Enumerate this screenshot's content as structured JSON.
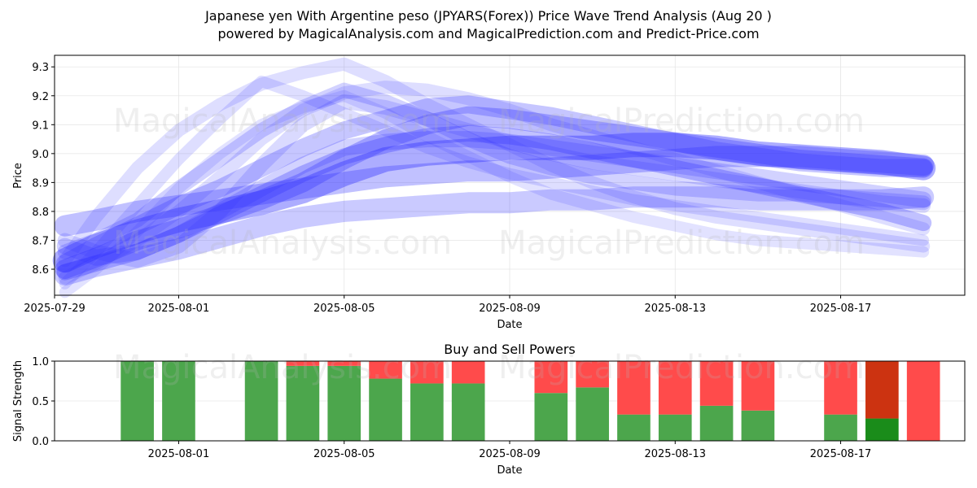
{
  "header": {
    "title_line1": "Japanese yen With Argentine peso (JPYARS(Forex)) Price Wave Trend Analysis (Aug 20 )",
    "title_line2": "powered by MagicalAnalysis.com and MagicalPrediction.com and Predict-Price.com"
  },
  "watermarks": [
    "MagicalAnalysis.com",
    "MagicalPrediction.com"
  ],
  "colors": {
    "wave": "#3333ff",
    "buy": "#4ca64c",
    "sell": "#ff4b4b",
    "buy_strong": "#1a8c1a",
    "sell_strong": "#cc3311"
  },
  "chart_data": [
    {
      "type": "line",
      "title": "",
      "xlabel": "Date",
      "ylabel": "Price",
      "xlim": [
        "2025-07-29",
        "2025-08-20"
      ],
      "ylim": [
        8.51,
        9.34
      ],
      "x_ticks": [
        "2025-07-29",
        "2025-08-01",
        "2025-08-05",
        "2025-08-09",
        "2025-08-13",
        "2025-08-17"
      ],
      "y_ticks": [
        8.6,
        8.7,
        8.8,
        8.9,
        9.0,
        9.1,
        9.2,
        9.3
      ],
      "grid": true,
      "series": [
        {
          "x": [
            "2025-07-29T06:00",
            "2025-07-30",
            "2025-07-31",
            "2025-08-01",
            "2025-08-02",
            "2025-08-03",
            "2025-08-04",
            "2025-08-05",
            "2025-08-06",
            "2025-08-07",
            "2025-08-08",
            "2025-08-09",
            "2025-08-10",
            "2025-08-11",
            "2025-08-12",
            "2025-08-13",
            "2025-08-14",
            "2025-08-15",
            "2025-08-16",
            "2025-08-17",
            "2025-08-18",
            "2025-08-19"
          ],
          "y": [
            8.63,
            8.68,
            8.73,
            8.77,
            8.8,
            8.83,
            8.87,
            8.93,
            8.98,
            9.0,
            9.01,
            9.02,
            9.02,
            9.02,
            9.03,
            9.03,
            9.02,
            9.0,
            8.99,
            8.98,
            8.97,
            8.95
          ]
        },
        {
          "x": [
            "2025-07-29T06:00",
            "2025-07-30",
            "2025-07-31",
            "2025-08-01",
            "2025-08-02",
            "2025-08-03",
            "2025-08-04",
            "2025-08-05",
            "2025-08-06",
            "2025-08-07",
            "2025-08-08",
            "2025-08-09",
            "2025-08-10",
            "2025-08-11",
            "2025-08-12",
            "2025-08-13",
            "2025-08-14",
            "2025-08-15",
            "2025-08-16",
            "2025-08-17",
            "2025-08-18",
            "2025-08-19"
          ],
          "y": [
            8.75,
            8.77,
            8.8,
            8.82,
            8.84,
            8.86,
            8.88,
            8.9,
            8.92,
            8.93,
            8.94,
            8.94,
            8.95,
            8.96,
            8.97,
            8.98,
            8.99,
            8.99,
            8.99,
            8.98,
            8.97,
            8.96
          ]
        },
        {
          "x": [
            "2025-07-29T06:00",
            "2025-07-30",
            "2025-07-31",
            "2025-08-01",
            "2025-08-02",
            "2025-08-03",
            "2025-08-04",
            "2025-08-05",
            "2025-08-06",
            "2025-08-07",
            "2025-08-08",
            "2025-08-09",
            "2025-08-10",
            "2025-08-11",
            "2025-08-12",
            "2025-08-13",
            "2025-08-14",
            "2025-08-15",
            "2025-08-16",
            "2025-08-17",
            "2025-08-18",
            "2025-08-19"
          ],
          "y": [
            8.6,
            8.64,
            8.7,
            8.74,
            8.79,
            8.84,
            8.9,
            8.98,
            9.05,
            9.1,
            9.13,
            9.12,
            9.1,
            9.08,
            9.06,
            9.04,
            9.02,
            9.0,
            8.98,
            8.97,
            8.96,
            8.95
          ]
        },
        {
          "x": [
            "2025-07-29T06:00",
            "2025-07-30",
            "2025-07-31",
            "2025-08-01",
            "2025-08-02",
            "2025-08-03",
            "2025-08-04",
            "2025-08-05",
            "2025-08-06",
            "2025-08-07",
            "2025-08-08",
            "2025-08-09",
            "2025-08-10",
            "2025-08-11",
            "2025-08-12",
            "2025-08-13",
            "2025-08-14",
            "2025-08-15",
            "2025-08-16",
            "2025-08-17",
            "2025-08-18",
            "2025-08-19"
          ],
          "y": [
            8.62,
            8.68,
            8.75,
            8.82,
            8.88,
            8.95,
            9.02,
            9.08,
            9.12,
            9.16,
            9.17,
            9.15,
            9.13,
            9.1,
            9.07,
            9.04,
            9.01,
            8.99,
            8.97,
            8.96,
            8.95,
            8.95
          ]
        },
        {
          "x": [
            "2025-07-29T06:00",
            "2025-07-30",
            "2025-07-31",
            "2025-08-01",
            "2025-08-02",
            "2025-08-03",
            "2025-08-04",
            "2025-08-05",
            "2025-08-06",
            "2025-08-07",
            "2025-08-08",
            "2025-08-09",
            "2025-08-10",
            "2025-08-11",
            "2025-08-12",
            "2025-08-13",
            "2025-08-14",
            "2025-08-15",
            "2025-08-16",
            "2025-08-17",
            "2025-08-18",
            "2025-08-19"
          ],
          "y": [
            8.66,
            8.7,
            8.77,
            8.88,
            8.98,
            9.08,
            9.16,
            9.22,
            9.18,
            9.12,
            9.05,
            8.99,
            8.95,
            8.92,
            8.9,
            8.88,
            8.87,
            8.86,
            8.86,
            8.85,
            8.84,
            8.83
          ]
        },
        {
          "x": [
            "2025-07-29T06:00",
            "2025-07-30",
            "2025-07-31",
            "2025-08-01",
            "2025-08-02",
            "2025-08-03",
            "2025-08-04",
            "2025-08-05",
            "2025-08-06",
            "2025-08-07",
            "2025-08-08",
            "2025-08-09",
            "2025-08-10",
            "2025-08-11",
            "2025-08-12",
            "2025-08-13",
            "2025-08-14",
            "2025-08-15",
            "2025-08-16",
            "2025-08-17",
            "2025-08-18",
            "2025-08-19"
          ],
          "y": [
            8.59,
            8.62,
            8.66,
            8.72,
            8.79,
            8.86,
            8.93,
            8.99,
            9.03,
            9.06,
            9.07,
            9.06,
            9.04,
            9.01,
            8.98,
            8.95,
            8.92,
            8.89,
            8.86,
            8.83,
            8.8,
            8.76
          ]
        },
        {
          "x": [
            "2025-07-29T06:00",
            "2025-07-30",
            "2025-07-31",
            "2025-08-01",
            "2025-08-02",
            "2025-08-03",
            "2025-08-04",
            "2025-08-05",
            "2025-08-06",
            "2025-08-07",
            "2025-08-08",
            "2025-08-09",
            "2025-08-10",
            "2025-08-11",
            "2025-08-12",
            "2025-08-13",
            "2025-08-14",
            "2025-08-15",
            "2025-08-16",
            "2025-08-17",
            "2025-08-18",
            "2025-08-19"
          ],
          "y": [
            8.58,
            8.61,
            8.64,
            8.67,
            8.71,
            8.75,
            8.78,
            8.8,
            8.81,
            8.82,
            8.83,
            8.83,
            8.84,
            8.84,
            8.85,
            8.85,
            8.85,
            8.84,
            8.84,
            8.84,
            8.84,
            8.85
          ]
        },
        {
          "x": [
            "2025-07-29T06:00",
            "2025-07-30",
            "2025-07-31",
            "2025-08-01",
            "2025-08-02",
            "2025-08-03",
            "2025-08-04",
            "2025-08-05",
            "2025-08-06",
            "2025-08-07",
            "2025-08-08",
            "2025-08-09",
            "2025-08-10",
            "2025-08-11",
            "2025-08-12",
            "2025-08-13",
            "2025-08-14",
            "2025-08-15",
            "2025-08-16",
            "2025-08-17",
            "2025-08-18",
            "2025-08-19"
          ],
          "y": [
            8.63,
            8.78,
            8.95,
            9.08,
            9.17,
            9.24,
            9.28,
            9.31,
            9.25,
            9.17,
            9.1,
            9.03,
            8.96,
            8.9,
            8.85,
            8.81,
            8.78,
            8.76,
            8.74,
            8.72,
            8.7,
            8.68
          ]
        },
        {
          "x": [
            "2025-07-29T06:00",
            "2025-07-30",
            "2025-07-31",
            "2025-08-01",
            "2025-08-02",
            "2025-08-03",
            "2025-08-04",
            "2025-08-05",
            "2025-08-06",
            "2025-08-07",
            "2025-08-08",
            "2025-08-09",
            "2025-08-10",
            "2025-08-11",
            "2025-08-12",
            "2025-08-13",
            "2025-08-14",
            "2025-08-15",
            "2025-08-16",
            "2025-08-17",
            "2025-08-18",
            "2025-08-19"
          ],
          "y": [
            8.55,
            8.66,
            8.82,
            8.98,
            9.12,
            9.25,
            9.2,
            9.14,
            9.08,
            9.02,
            8.97,
            8.93,
            8.9,
            8.87,
            8.84,
            8.82,
            8.8,
            8.78,
            8.76,
            8.74,
            8.72,
            8.7
          ]
        },
        {
          "x": [
            "2025-07-29T06:00",
            "2025-07-30",
            "2025-07-31",
            "2025-08-01",
            "2025-08-02",
            "2025-08-03",
            "2025-08-04",
            "2025-08-05",
            "2025-08-06",
            "2025-08-07",
            "2025-08-08",
            "2025-08-09",
            "2025-08-10",
            "2025-08-11",
            "2025-08-12",
            "2025-08-13",
            "2025-08-14",
            "2025-08-15",
            "2025-08-16",
            "2025-08-17",
            "2025-08-18",
            "2025-08-19"
          ],
          "y": [
            8.52,
            8.6,
            8.73,
            8.88,
            9.0,
            9.1,
            9.16,
            9.2,
            9.14,
            9.06,
            8.99,
            8.92,
            8.86,
            8.82,
            8.78,
            8.75,
            8.72,
            8.7,
            8.69,
            8.68,
            8.67,
            8.66
          ]
        },
        {
          "x": [
            "2025-07-29T06:00",
            "2025-07-30",
            "2025-07-31",
            "2025-08-01",
            "2025-08-02",
            "2025-08-03",
            "2025-08-04",
            "2025-08-05",
            "2025-08-06",
            "2025-08-07",
            "2025-08-08",
            "2025-08-09",
            "2025-08-10",
            "2025-08-11",
            "2025-08-12",
            "2025-08-13",
            "2025-08-14",
            "2025-08-15",
            "2025-08-16",
            "2025-08-17",
            "2025-08-18",
            "2025-08-19"
          ],
          "y": [
            8.7,
            8.66,
            8.63,
            8.68,
            8.8,
            8.96,
            9.1,
            9.18,
            9.16,
            9.12,
            9.08,
            9.04,
            9.0,
            8.97,
            8.95,
            8.93,
            8.91,
            8.89,
            8.87,
            8.85,
            8.83,
            8.82
          ]
        },
        {
          "x": [
            "2025-07-29T06:00",
            "2025-07-30",
            "2025-07-31",
            "2025-08-01",
            "2025-08-02",
            "2025-08-03",
            "2025-08-04",
            "2025-08-05",
            "2025-08-06",
            "2025-08-07",
            "2025-08-08",
            "2025-08-09",
            "2025-08-10",
            "2025-08-11",
            "2025-08-12",
            "2025-08-13",
            "2025-08-14",
            "2025-08-15",
            "2025-08-16",
            "2025-08-17",
            "2025-08-18",
            "2025-08-19"
          ],
          "y": [
            8.57,
            8.62,
            8.7,
            8.8,
            8.92,
            9.05,
            9.15,
            9.21,
            9.23,
            9.22,
            9.19,
            9.15,
            9.1,
            9.06,
            9.02,
            8.98,
            8.94,
            8.9,
            8.86,
            8.82,
            8.78,
            8.74
          ]
        },
        {
          "x": [
            "2025-07-29T06:00",
            "2025-07-30",
            "2025-07-31",
            "2025-08-01",
            "2025-08-02",
            "2025-08-03",
            "2025-08-04",
            "2025-08-05",
            "2025-08-06",
            "2025-08-07",
            "2025-08-08",
            "2025-08-09",
            "2025-08-10",
            "2025-08-11",
            "2025-08-12",
            "2025-08-13",
            "2025-08-14",
            "2025-08-15",
            "2025-08-16",
            "2025-08-17",
            "2025-08-18",
            "2025-08-19"
          ],
          "y": [
            8.68,
            8.64,
            8.66,
            8.72,
            8.8,
            8.88,
            8.96,
            9.02,
            9.04,
            9.05,
            9.05,
            9.04,
            9.02,
            9.0,
            8.98,
            8.96,
            8.94,
            8.92,
            8.9,
            8.88,
            8.86,
            8.84
          ]
        }
      ]
    },
    {
      "type": "bar",
      "title": "Buy and Sell Powers",
      "xlabel": "Date",
      "ylabel": "Signal Strength",
      "ylim": [
        0,
        1
      ],
      "y_ticks": [
        0.0,
        0.5,
        1.0
      ],
      "x_ticks": [
        "2025-08-01",
        "2025-08-05",
        "2025-08-09",
        "2025-08-13",
        "2025-08-17"
      ],
      "xlim": [
        "2025-07-29",
        "2025-08-20"
      ],
      "categories": [
        "2025-07-31",
        "2025-08-01",
        "2025-08-03",
        "2025-08-04",
        "2025-08-05",
        "2025-08-06",
        "2025-08-07",
        "2025-08-08",
        "2025-08-10",
        "2025-08-11",
        "2025-08-12",
        "2025-08-13",
        "2025-08-14",
        "2025-08-15",
        "2025-08-17",
        "2025-08-18",
        "2025-08-19"
      ],
      "series": [
        {
          "name": "Buy",
          "values": [
            1.0,
            1.0,
            1.0,
            0.94,
            0.94,
            0.78,
            0.72,
            0.72,
            0.6,
            0.67,
            0.33,
            0.33,
            0.44,
            0.38,
            0.33,
            0.28,
            0.0
          ]
        },
        {
          "name": "Sell",
          "values": [
            0.0,
            0.0,
            0.0,
            0.06,
            0.06,
            0.22,
            0.28,
            0.28,
            0.4,
            0.33,
            0.67,
            0.67,
            0.56,
            0.62,
            0.67,
            0.72,
            1.0
          ]
        }
      ],
      "strong": [
        false,
        false,
        false,
        false,
        false,
        false,
        false,
        false,
        false,
        false,
        false,
        false,
        false,
        false,
        false,
        true,
        false
      ]
    }
  ]
}
